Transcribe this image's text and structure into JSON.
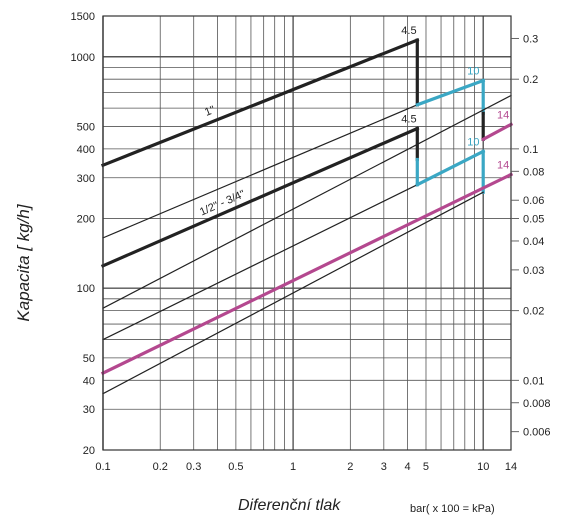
{
  "chart_data": {
    "type": "line",
    "xscale": "log",
    "yscale": "log",
    "xlim": [
      0.1,
      14
    ],
    "ylim": [
      20,
      1500
    ],
    "x_ticks": [
      "0.1",
      "0.2",
      "0.3",
      "0.5",
      "1",
      "2",
      "3",
      "4",
      "5",
      "10",
      "14"
    ],
    "y_ticks": [
      "20",
      "30",
      "40",
      "50",
      "100",
      "200",
      "300",
      "400",
      "500",
      "1000",
      "1500"
    ],
    "right_ticks": [
      "0.3",
      "0.2",
      "0.1",
      "0.08",
      "0.06",
      "0.05",
      "0.04",
      "0.03",
      "0.02",
      "0.01",
      "0.008",
      "0.006"
    ],
    "ylabel": "Kapacita [ kg/h]",
    "xlabel": "Diferenční tlak",
    "xunit": "bar( x 100 = kPa)",
    "grid": true,
    "colors": {
      "black": "#222222",
      "blue": "#3aa7c4",
      "magenta": "#b4488f",
      "grid": "#555555"
    },
    "line_labels": [
      "1\"",
      "1/2\" - 3/4\""
    ],
    "series": [
      {
        "color": "black",
        "width": "thick",
        "points": [
          [
            0.1,
            340
          ],
          [
            4.5,
            1180
          ]
        ]
      },
      {
        "color": "black",
        "width": "thick",
        "points": [
          [
            4.5,
            1180
          ],
          [
            4.5,
            620
          ]
        ]
      },
      {
        "color": "black",
        "width": "thin",
        "points": [
          [
            0.1,
            165
          ],
          [
            4.5,
            620
          ]
        ]
      },
      {
        "color": "blue",
        "width": "thick",
        "points": [
          [
            4.5,
            620
          ],
          [
            10,
            790
          ]
        ]
      },
      {
        "color": "blue",
        "width": "thick",
        "points": [
          [
            10,
            790
          ],
          [
            10,
            570
          ]
        ]
      },
      {
        "color": "black",
        "width": "thick",
        "points": [
          [
            10,
            570
          ],
          [
            10,
            440
          ]
        ]
      },
      {
        "color": "magenta",
        "width": "thick",
        "points": [
          [
            10,
            440
          ],
          [
            14,
            510
          ]
        ]
      },
      {
        "color": "black",
        "width": "thin",
        "points": [
          [
            0.1,
            82
          ],
          [
            14,
            680
          ]
        ]
      },
      {
        "color": "black",
        "width": "thick",
        "points": [
          [
            0.1,
            125
          ],
          [
            4.5,
            490
          ]
        ]
      },
      {
        "color": "black",
        "width": "thick",
        "points": [
          [
            4.5,
            490
          ],
          [
            4.5,
            360
          ]
        ]
      },
      {
        "color": "blue",
        "width": "thick",
        "points": [
          [
            4.5,
            360
          ],
          [
            4.5,
            280
          ]
        ]
      },
      {
        "color": "black",
        "width": "thin",
        "points": [
          [
            0.1,
            60
          ],
          [
            4.5,
            280
          ]
        ]
      },
      {
        "color": "blue",
        "width": "thick",
        "points": [
          [
            4.5,
            280
          ],
          [
            10,
            390
          ]
        ]
      },
      {
        "color": "blue",
        "width": "thick",
        "points": [
          [
            10,
            390
          ],
          [
            10,
            260
          ]
        ]
      },
      {
        "color": "black",
        "width": "thin",
        "points": [
          [
            0.1,
            35
          ],
          [
            10,
            260
          ]
        ]
      },
      {
        "color": "magenta",
        "width": "thick",
        "points": [
          [
            0.1,
            43
          ],
          [
            14,
            310
          ]
        ]
      }
    ],
    "annotations": [
      {
        "text": "4.5",
        "x": 4.5,
        "y": 1180,
        "color": "black"
      },
      {
        "text": "10",
        "x": 10,
        "y": 790,
        "color": "blue"
      },
      {
        "text": "14",
        "x": 14,
        "y": 510,
        "color": "magenta"
      },
      {
        "text": "4.5",
        "x": 4.5,
        "y": 490,
        "color": "black"
      },
      {
        "text": "10",
        "x": 10,
        "y": 390,
        "color": "blue"
      },
      {
        "text": "14",
        "x": 14,
        "y": 310,
        "color": "magenta"
      }
    ]
  }
}
